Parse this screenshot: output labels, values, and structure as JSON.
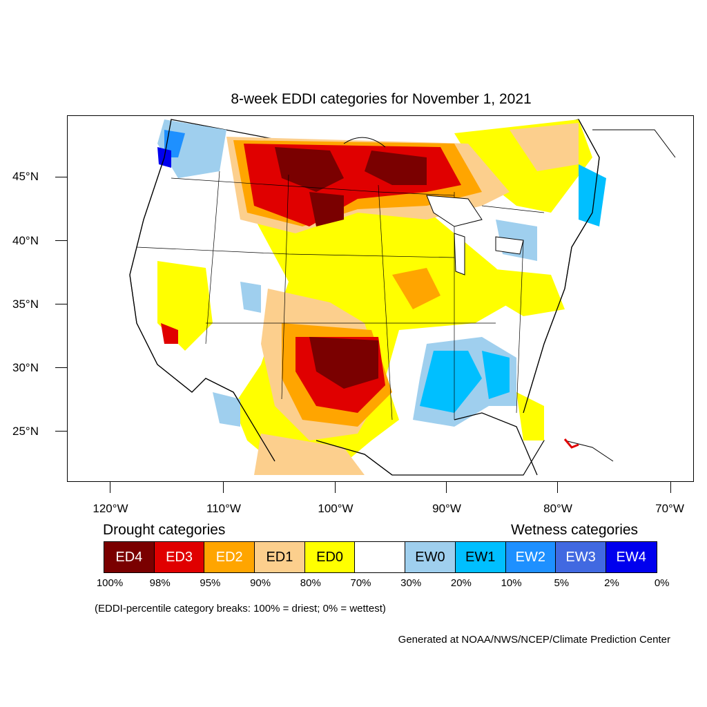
{
  "title": "8-week EDDI categories for November 1, 2021",
  "map": {
    "lat_labels": [
      "45°N",
      "40°N",
      "35°N",
      "30°N",
      "25°N"
    ],
    "lon_labels": [
      "120°W",
      "110°W",
      "100°W",
      "90°W",
      "80°W",
      "70°W"
    ]
  },
  "legend": {
    "drought_heading": "Drought categories",
    "wetness_heading": "Wetness categories",
    "categories": [
      {
        "label": "ED4",
        "color": "#7a0000",
        "text_color": "#ffffff"
      },
      {
        "label": "ED3",
        "color": "#e00000",
        "text_color": "#ffffff"
      },
      {
        "label": "ED2",
        "color": "#ffa500",
        "text_color": "#ffffff"
      },
      {
        "label": "ED1",
        "color": "#fccf8d",
        "text_color": "#000000"
      },
      {
        "label": "ED0",
        "color": "#ffff00",
        "text_color": "#000000"
      },
      {
        "label": "",
        "color": "#ffffff",
        "text_color": "#000000"
      },
      {
        "label": "EW0",
        "color": "#9fcfee",
        "text_color": "#000000"
      },
      {
        "label": "EW1",
        "color": "#00bfff",
        "text_color": "#000000"
      },
      {
        "label": "EW2",
        "color": "#1e90ff",
        "text_color": "#ffffff"
      },
      {
        "label": "EW3",
        "color": "#4169e1",
        "text_color": "#ffffff"
      },
      {
        "label": "EW4",
        "color": "#0000ee",
        "text_color": "#ffffff"
      }
    ],
    "percentiles": [
      "100%",
      "98%",
      "95%",
      "90%",
      "80%",
      "70%",
      "30%",
      "20%",
      "10%",
      "5%",
      "2%",
      "0%"
    ]
  },
  "note": "(EDDI-percentile category breaks: 100% = driest; 0% = wettest)",
  "credit": "Generated at NOAA/NWS/NCEP/Climate Prediction Center"
}
